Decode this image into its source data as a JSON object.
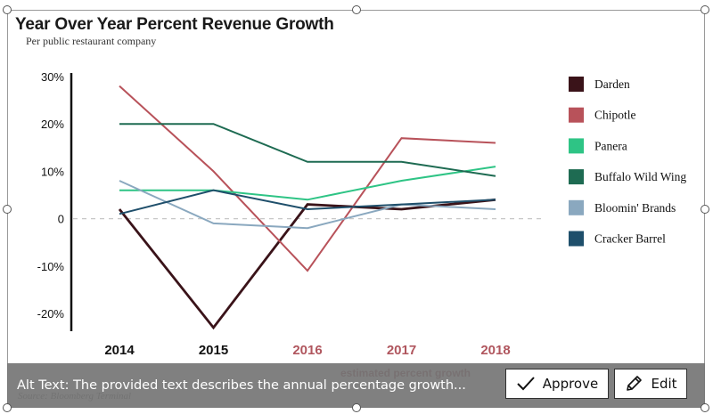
{
  "chart_data": {
    "type": "line",
    "title": "Year Over Year Percent Revenue Growth",
    "subtitle": "Per public restaurant company",
    "categories": [
      "2014",
      "2015",
      "2016",
      "2017",
      "2018"
    ],
    "actual_categories": [
      "2014",
      "2015"
    ],
    "estimated_categories": [
      "2016",
      "2017",
      "2018"
    ],
    "estimate_note": "estimated percent growth",
    "source": "Source: Bloomberg Terminal",
    "ylim": [
      -20,
      30
    ],
    "yticks": [
      "30%",
      "20%",
      "10%",
      "0",
      "-10%",
      "-20%"
    ],
    "ytick_values": [
      30,
      20,
      10,
      0,
      -10,
      -20
    ],
    "zero_line": "dashed",
    "grid": false,
    "legend_position": "right",
    "series": [
      {
        "name": "Darden",
        "color": "#3a1319",
        "values": [
          2,
          -23,
          3,
          2,
          4
        ]
      },
      {
        "name": "Chipotle",
        "color": "#b8525a",
        "values": [
          28,
          10,
          -11,
          17,
          16
        ]
      },
      {
        "name": "Panera",
        "color": "#2ec485",
        "values": [
          6,
          6,
          4,
          8,
          11
        ]
      },
      {
        "name": "Buffalo Wild Wing",
        "color": "#1e6b52",
        "values": [
          20,
          20,
          12,
          12,
          9
        ]
      },
      {
        "name": "Bloomin' Brands",
        "color": "#8aa8bf",
        "values": [
          8,
          -1,
          -2,
          3,
          2
        ]
      },
      {
        "name": "Cracker Barrel",
        "color": "#1f4f6b",
        "values": [
          1,
          6,
          2,
          3,
          4
        ]
      }
    ]
  },
  "alt_text": {
    "text": "Alt Text: The provided text describes the annual percentage growth..."
  },
  "buttons": {
    "approve_label": "Approve",
    "edit_label": "Edit"
  },
  "colors": {
    "estimate_year": "#b0565e",
    "actual_year": "#111111",
    "alt_bar": "#767676"
  },
  "icons": {
    "approve": "check-icon",
    "edit": "pencil-icon"
  }
}
